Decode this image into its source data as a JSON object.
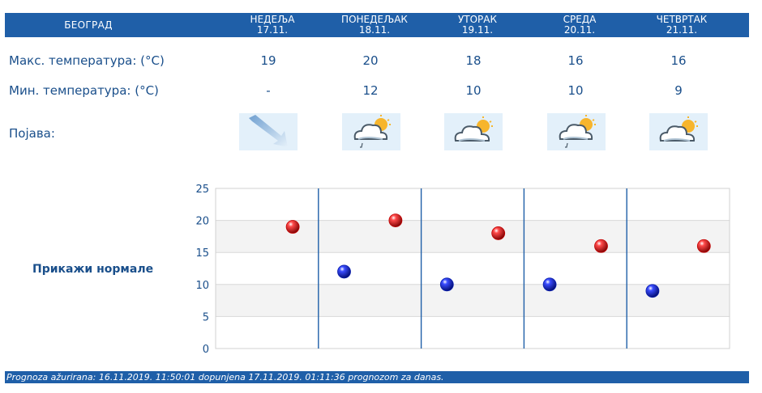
{
  "header": {
    "city": "БЕОГРАД",
    "days": [
      {
        "name": "НЕДЕЉА",
        "date": "17.11."
      },
      {
        "name": "ПОНЕДЕЉАК",
        "date": "18.11."
      },
      {
        "name": "УТОРАК",
        "date": "19.11."
      },
      {
        "name": "СРЕДА",
        "date": "20.11."
      },
      {
        "name": "ЧЕТВРТАК",
        "date": "21.11."
      }
    ]
  },
  "rows": {
    "max_label": "Макс. температура: (°C)",
    "min_label": "Мин. температура: (°C)",
    "phenomenon_label": "Појава:",
    "max": [
      "19",
      "20",
      "18",
      "16",
      "16"
    ],
    "min": [
      "-",
      "12",
      "10",
      "10",
      "9"
    ],
    "icons": [
      "wind-arrow-icon",
      "cloud-sun-rain-icon",
      "cloud-sun-icon",
      "cloud-sun-rain-icon",
      "cloud-sun-icon"
    ]
  },
  "normals_link": "Прикажи нормале",
  "chart_data": {
    "type": "scatter",
    "categories": [
      "17.11.",
      "18.11.",
      "19.11.",
      "20.11.",
      "21.11."
    ],
    "series": [
      {
        "values": [
          null,
          12,
          10,
          10,
          9
        ],
        "color": "#0a1fb0"
      },
      {
        "values": [
          19,
          20,
          18,
          16,
          16
        ],
        "color": "#c40000"
      }
    ],
    "ylim": [
      0,
      25
    ],
    "yticks": [
      "0",
      "5",
      "10",
      "15",
      "20",
      "25"
    ],
    "grid": true
  },
  "footer": "Prognoza ažurirana:  16.11.2019. 11:50:01 dopunjena 17.11.2019. 01:11:36 prognozom za danas.",
  "colors": {
    "header_bg": "#1f5fa8",
    "text": "#1a4f8b",
    "max_dot": "#c40000",
    "min_dot": "#0a1fb0"
  }
}
